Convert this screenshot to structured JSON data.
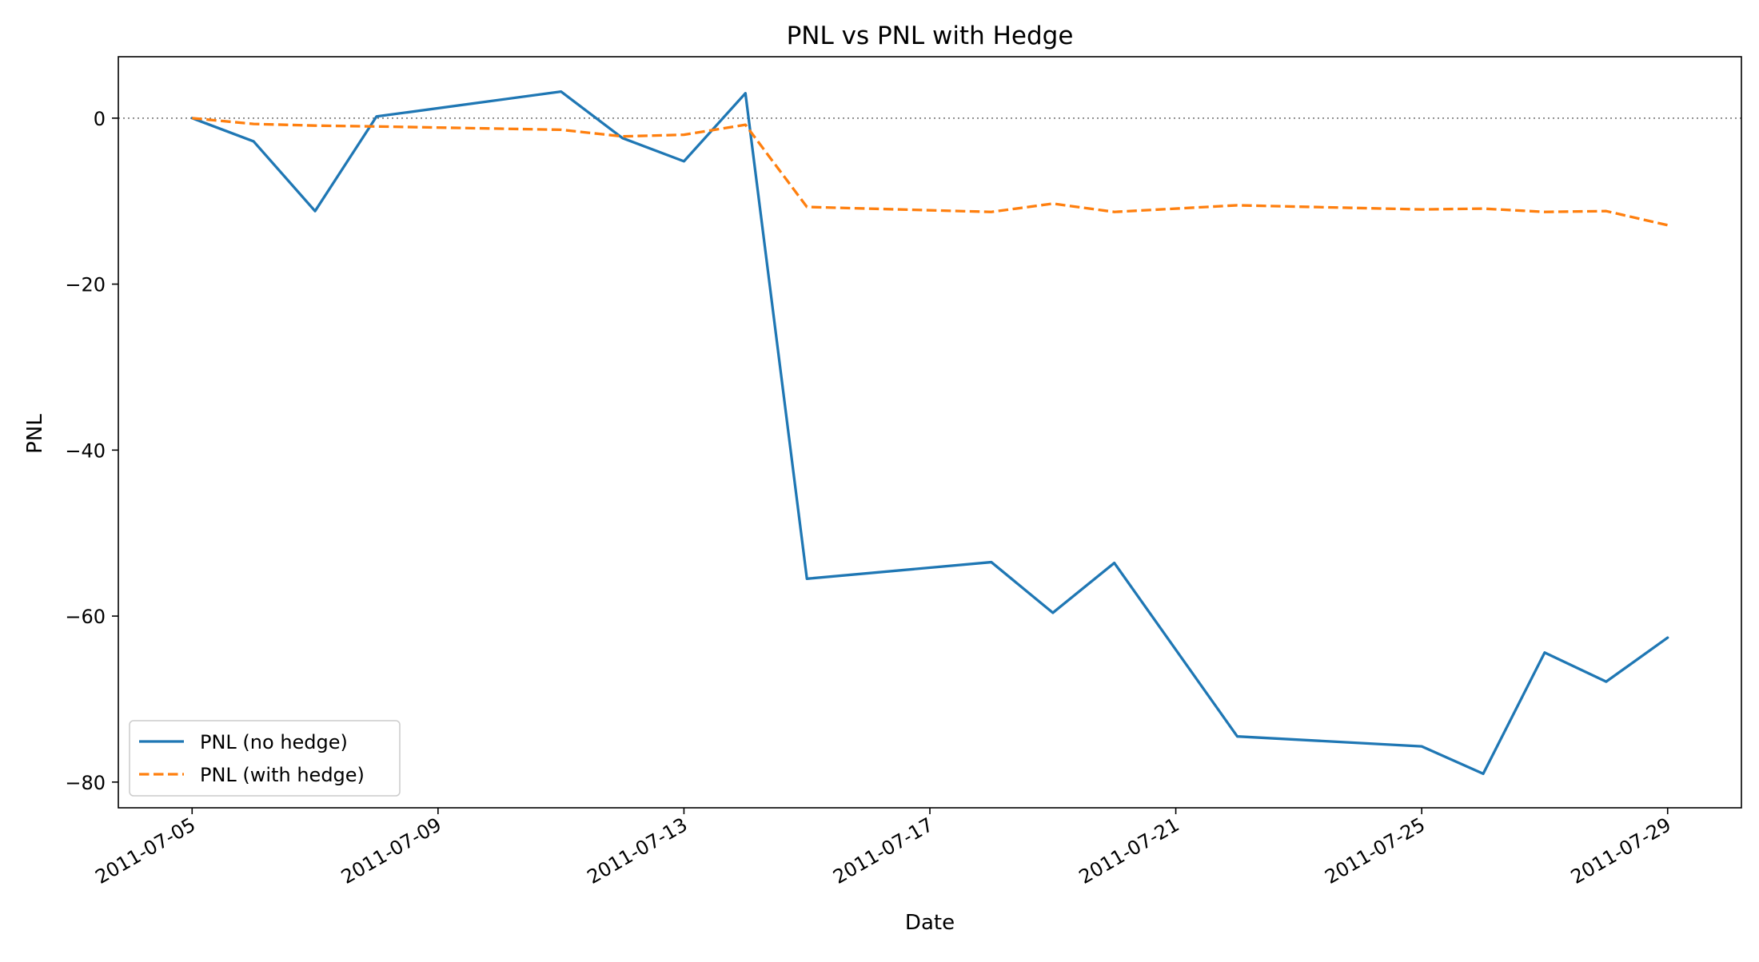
{
  "chart_data": {
    "type": "line",
    "title": "PNL vs PNL with Hedge",
    "xlabel": "Date",
    "ylabel": "PNL",
    "x_ticks": [
      "2011-07-05",
      "2011-07-09",
      "2011-07-13",
      "2011-07-17",
      "2011-07-21",
      "2011-07-25",
      "2011-07-29"
    ],
    "y_ticks": [
      0,
      -20,
      -40,
      -60,
      -80
    ],
    "xlim": [
      "2011-07-03 19:12",
      "2011-07-30 04:48"
    ],
    "ylim": [
      -83.1,
      7.4
    ],
    "zero_reference_line": true,
    "grid": false,
    "legend_position": "lower-left",
    "series": [
      {
        "name": "PNL (no hedge)",
        "color": "#1f77b4",
        "style": "solid",
        "points": [
          {
            "x": "2011-07-05",
            "y": 0
          },
          {
            "x": "2011-07-06",
            "y": -2.8
          },
          {
            "x": "2011-07-07",
            "y": -11.2
          },
          {
            "x": "2011-07-08",
            "y": 0.2
          },
          {
            "x": "2011-07-11",
            "y": 3.2
          },
          {
            "x": "2011-07-12",
            "y": -2.4
          },
          {
            "x": "2011-07-13",
            "y": -5.2
          },
          {
            "x": "2011-07-14",
            "y": 3.0
          },
          {
            "x": "2011-07-15",
            "y": -55.5
          },
          {
            "x": "2011-07-18",
            "y": -53.5
          },
          {
            "x": "2011-07-19",
            "y": -59.6
          },
          {
            "x": "2011-07-20",
            "y": -53.6
          },
          {
            "x": "2011-07-22",
            "y": -74.5
          },
          {
            "x": "2011-07-25",
            "y": -75.7
          },
          {
            "x": "2011-07-26",
            "y": -79.0
          },
          {
            "x": "2011-07-27",
            "y": -64.4
          },
          {
            "x": "2011-07-28",
            "y": -67.9
          },
          {
            "x": "2011-07-29",
            "y": -62.6
          }
        ]
      },
      {
        "name": "PNL (with hedge)",
        "color": "#ff7f0e",
        "style": "dashed",
        "points": [
          {
            "x": "2011-07-05",
            "y": 0
          },
          {
            "x": "2011-07-06",
            "y": -0.7
          },
          {
            "x": "2011-07-07",
            "y": -0.9
          },
          {
            "x": "2011-07-08",
            "y": -1.0
          },
          {
            "x": "2011-07-11",
            "y": -1.4
          },
          {
            "x": "2011-07-12",
            "y": -2.2
          },
          {
            "x": "2011-07-13",
            "y": -2.0
          },
          {
            "x": "2011-07-14",
            "y": -0.8
          },
          {
            "x": "2011-07-15",
            "y": -10.7
          },
          {
            "x": "2011-07-18",
            "y": -11.3
          },
          {
            "x": "2011-07-19",
            "y": -10.3
          },
          {
            "x": "2011-07-20",
            "y": -11.3
          },
          {
            "x": "2011-07-22",
            "y": -10.5
          },
          {
            "x": "2011-07-25",
            "y": -11.0
          },
          {
            "x": "2011-07-26",
            "y": -10.9
          },
          {
            "x": "2011-07-27",
            "y": -11.3
          },
          {
            "x": "2011-07-28",
            "y": -11.2
          },
          {
            "x": "2011-07-29",
            "y": -12.9
          }
        ]
      }
    ]
  }
}
